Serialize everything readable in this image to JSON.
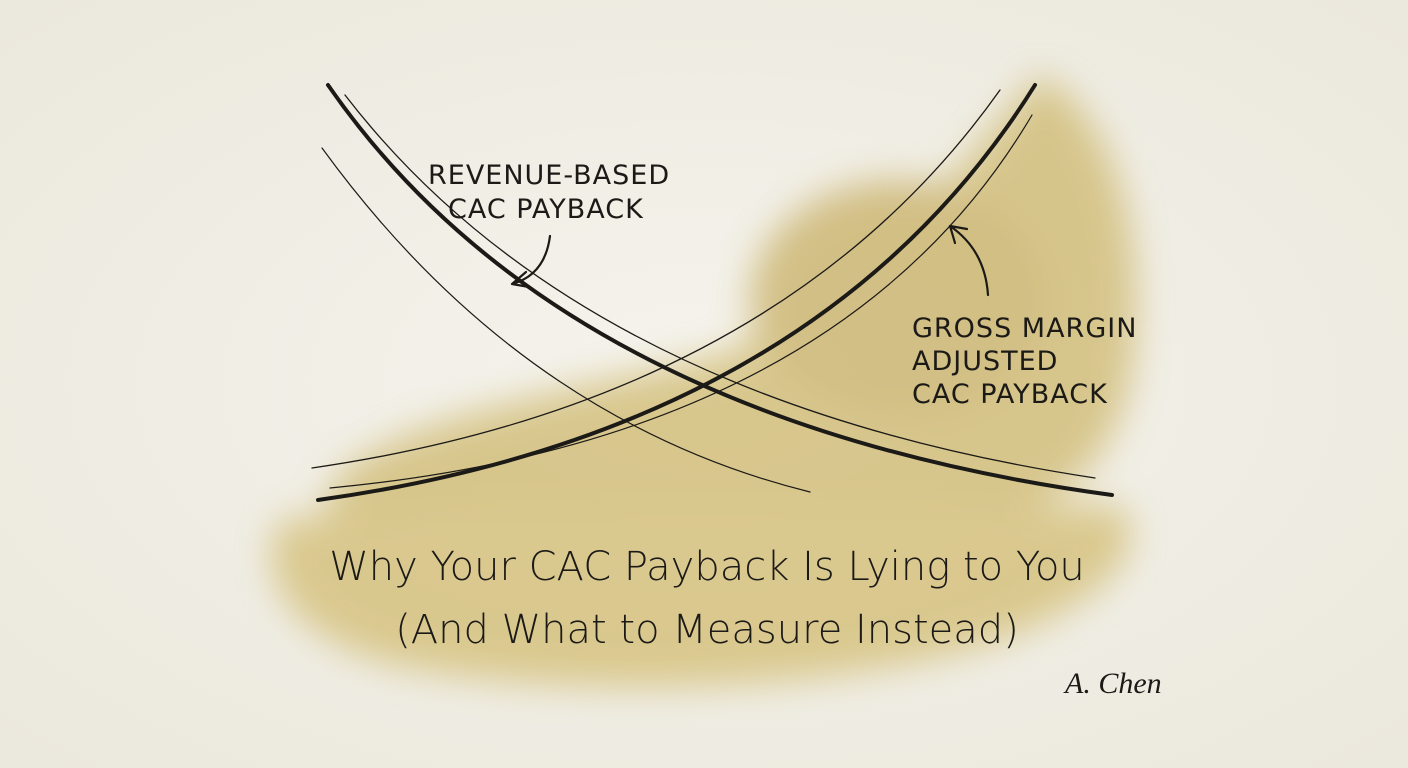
{
  "labels": [
    {
      "lines": [
        "REVENUE-BASED",
        "CAC PAYBACK"
      ]
    },
    {
      "lines": [
        "GROSS MARGIN",
        "ADJUSTED",
        "CAC PAYBACK"
      ]
    }
  ],
  "title": {
    "lines": [
      "Why Your CAC Payback Is Lying to You",
      "(And What to Measure Instead)"
    ]
  },
  "signature": "A. Chen"
}
